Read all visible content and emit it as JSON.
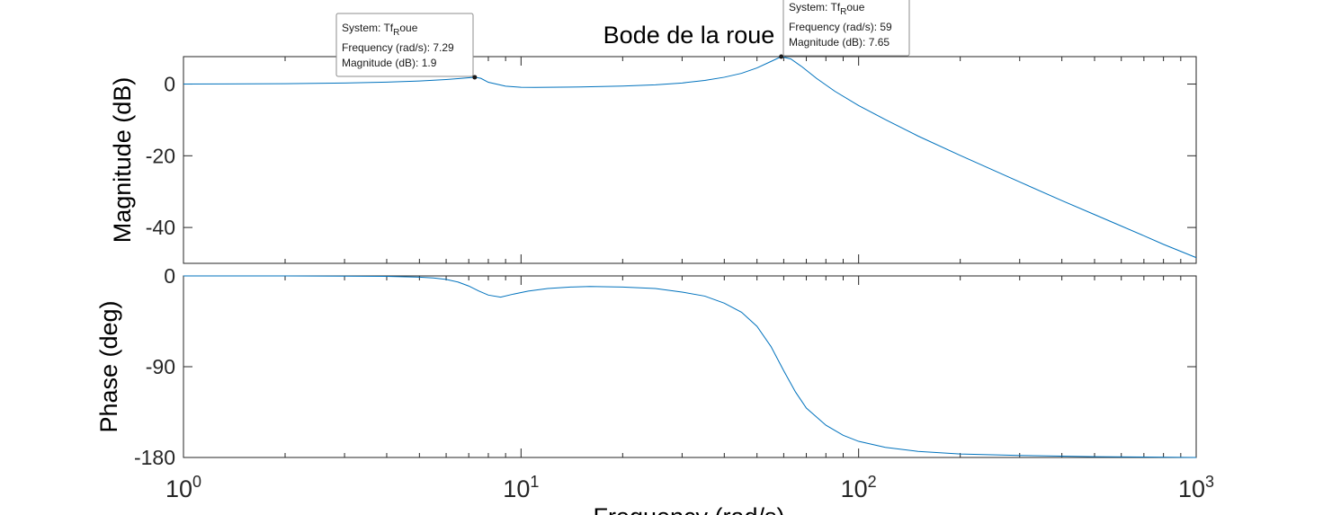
{
  "chart_data": {
    "type": "line",
    "title": "Bode de la roue",
    "xlabel": "Frequency (rad/s)",
    "xscale": "log",
    "xlim": [
      1,
      1000
    ],
    "x_ticks": [
      {
        "mantissa": "10",
        "exponent": "0"
      },
      {
        "mantissa": "10",
        "exponent": "1"
      },
      {
        "mantissa": "10",
        "exponent": "2"
      },
      {
        "mantissa": "10",
        "exponent": "3"
      }
    ],
    "series_color": "#0072BD",
    "grid": false,
    "panels": [
      {
        "name": "magnitude",
        "ylabel": "Magnitude (dB)",
        "ylim": [
          -50,
          7.65
        ],
        "yticks": [
          "0",
          "-20",
          "-40"
        ],
        "ytick_values": [
          0,
          -20,
          -40
        ],
        "series": [
          {
            "name": "Tf_Roue",
            "x": [
              1,
              2,
              3,
              4,
              5,
              6,
              6.5,
              7,
              7.29,
              7.6,
              8,
              9,
              10,
              11,
              12,
              15,
              20,
              25,
              30,
              35,
              40,
              45,
              50,
              55,
              59,
              63,
              68,
              75,
              85,
              100,
              120,
              150,
              200,
              300,
              400,
              500,
              600,
              700,
              800,
              1000
            ],
            "y": [
              0,
              0.1,
              0.3,
              0.55,
              0.85,
              1.25,
              1.5,
              1.75,
              1.9,
              1.6,
              0.5,
              -0.6,
              -0.9,
              -0.95,
              -0.9,
              -0.8,
              -0.55,
              -0.2,
              0.3,
              1.0,
              1.9,
              3.0,
              4.5,
              6.3,
              7.65,
              7.0,
              4.8,
              1.6,
              -2.0,
              -6.0,
              -9.9,
              -14.5,
              -19.9,
              -27.3,
              -32.5,
              -36.4,
              -39.6,
              -42.3,
              -44.7,
              -48.4
            ]
          }
        ]
      },
      {
        "name": "phase",
        "ylabel": "Phase (deg)",
        "ylim": [
          -180,
          0
        ],
        "yticks": [
          "0",
          "-90",
          "-180"
        ],
        "ytick_values": [
          0,
          -90,
          -180
        ],
        "series": [
          {
            "name": "Tf_Roue",
            "x": [
              1,
              2,
              3,
              4,
              5,
              5.5,
              6,
              6.5,
              7,
              7.5,
              8,
              8.7,
              9.5,
              10.5,
              12,
              14,
              16,
              20,
              25,
              30,
              35,
              40,
              45,
              50,
              55,
              60,
              65,
              70,
              80,
              90,
              100,
              120,
              150,
              200,
              300,
              500,
              700,
              1000
            ],
            "y": [
              0,
              0,
              -0.2,
              -0.5,
              -1.2,
              -2,
              -3.5,
              -6,
              -10,
              -15,
              -19,
              -21,
              -18,
              -15,
              -12.5,
              -11,
              -10.5,
              -11,
              -12.5,
              -16,
              -20,
              -27,
              -36,
              -50,
              -70,
              -94,
              -115,
              -131,
              -148,
              -158,
              -164,
              -170,
              -174,
              -176.5,
              -178,
              -179.2,
              -179.6,
              -180
            ]
          }
        ]
      }
    ],
    "datatips": [
      {
        "panel": "magnitude",
        "x": 7.29,
        "y": 1.9,
        "system_base": "Tf",
        "system_sub": "R",
        "system_rest": "oue",
        "system_label": "System: ",
        "freq_text": "Frequency (rad/s): 7.29",
        "mag_text": "Magnitude (dB): 1.9"
      },
      {
        "panel": "magnitude",
        "x": 59,
        "y": 7.65,
        "system_base": "Tf",
        "system_sub": "R",
        "system_rest": "oue",
        "system_label": "System: ",
        "freq_text": "Frequency (rad/s): 59",
        "mag_text": "Magnitude (dB): 7.65"
      }
    ]
  }
}
